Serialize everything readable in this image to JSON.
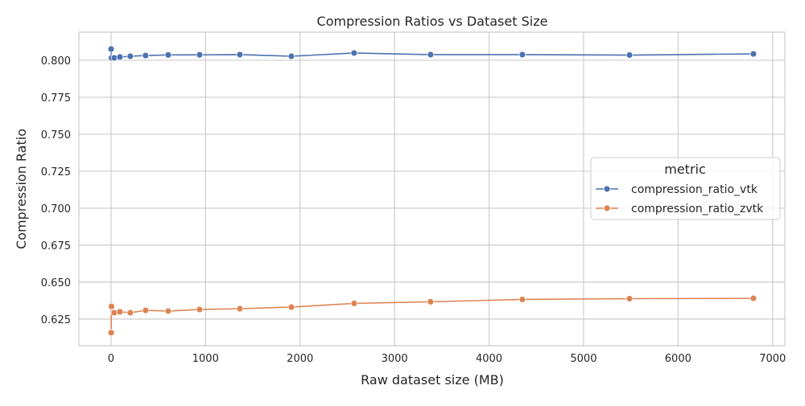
{
  "chart_data": {
    "type": "line",
    "title": "Compression Ratios vs Dataset Size",
    "xlabel": "Raw dataset size (MB)",
    "ylabel": "Compression Ratio",
    "xlim": [
      -340,
      7130
    ],
    "ylim": [
      0.607,
      0.819
    ],
    "xticks": [
      0,
      1000,
      2000,
      3000,
      4000,
      5000,
      6000,
      7000
    ],
    "yticks": [
      0.625,
      0.65,
      0.675,
      0.7,
      0.725,
      0.75,
      0.775,
      0.8
    ],
    "xtick_labels": [
      "0",
      "1000",
      "2000",
      "3000",
      "4000",
      "5000",
      "6000",
      "7000"
    ],
    "ytick_labels": [
      "0.625",
      "0.650",
      "0.675",
      "0.700",
      "0.725",
      "0.750",
      "0.775",
      "0.800"
    ],
    "grid": true,
    "legend": {
      "title": "metric",
      "placement": "center-right"
    },
    "series": [
      {
        "name": "compression_ratio_vtk",
        "color": "#4c72b0",
        "x": [
          1,
          5,
          34,
          94,
          204,
          366,
          605,
          937,
          1363,
          1908,
          2572,
          3381,
          4352,
          5486,
          6797
        ],
        "y": [
          0.8076,
          0.8016,
          0.8016,
          0.8022,
          0.8027,
          0.8032,
          0.8036,
          0.8037,
          0.8038,
          0.8027,
          0.8049,
          0.8038,
          0.8038,
          0.8035,
          0.8043
        ]
      },
      {
        "name": "compression_ratio_zvtk",
        "color": "#dd8452",
        "x": [
          1,
          5,
          34,
          94,
          204,
          366,
          605,
          937,
          1363,
          1908,
          2572,
          3381,
          4352,
          5486,
          6797
        ],
        "y": [
          0.6158,
          0.6336,
          0.6293,
          0.6299,
          0.6293,
          0.6309,
          0.6304,
          0.6315,
          0.632,
          0.6331,
          0.6356,
          0.6367,
          0.6383,
          0.6388,
          0.639
        ]
      }
    ]
  }
}
